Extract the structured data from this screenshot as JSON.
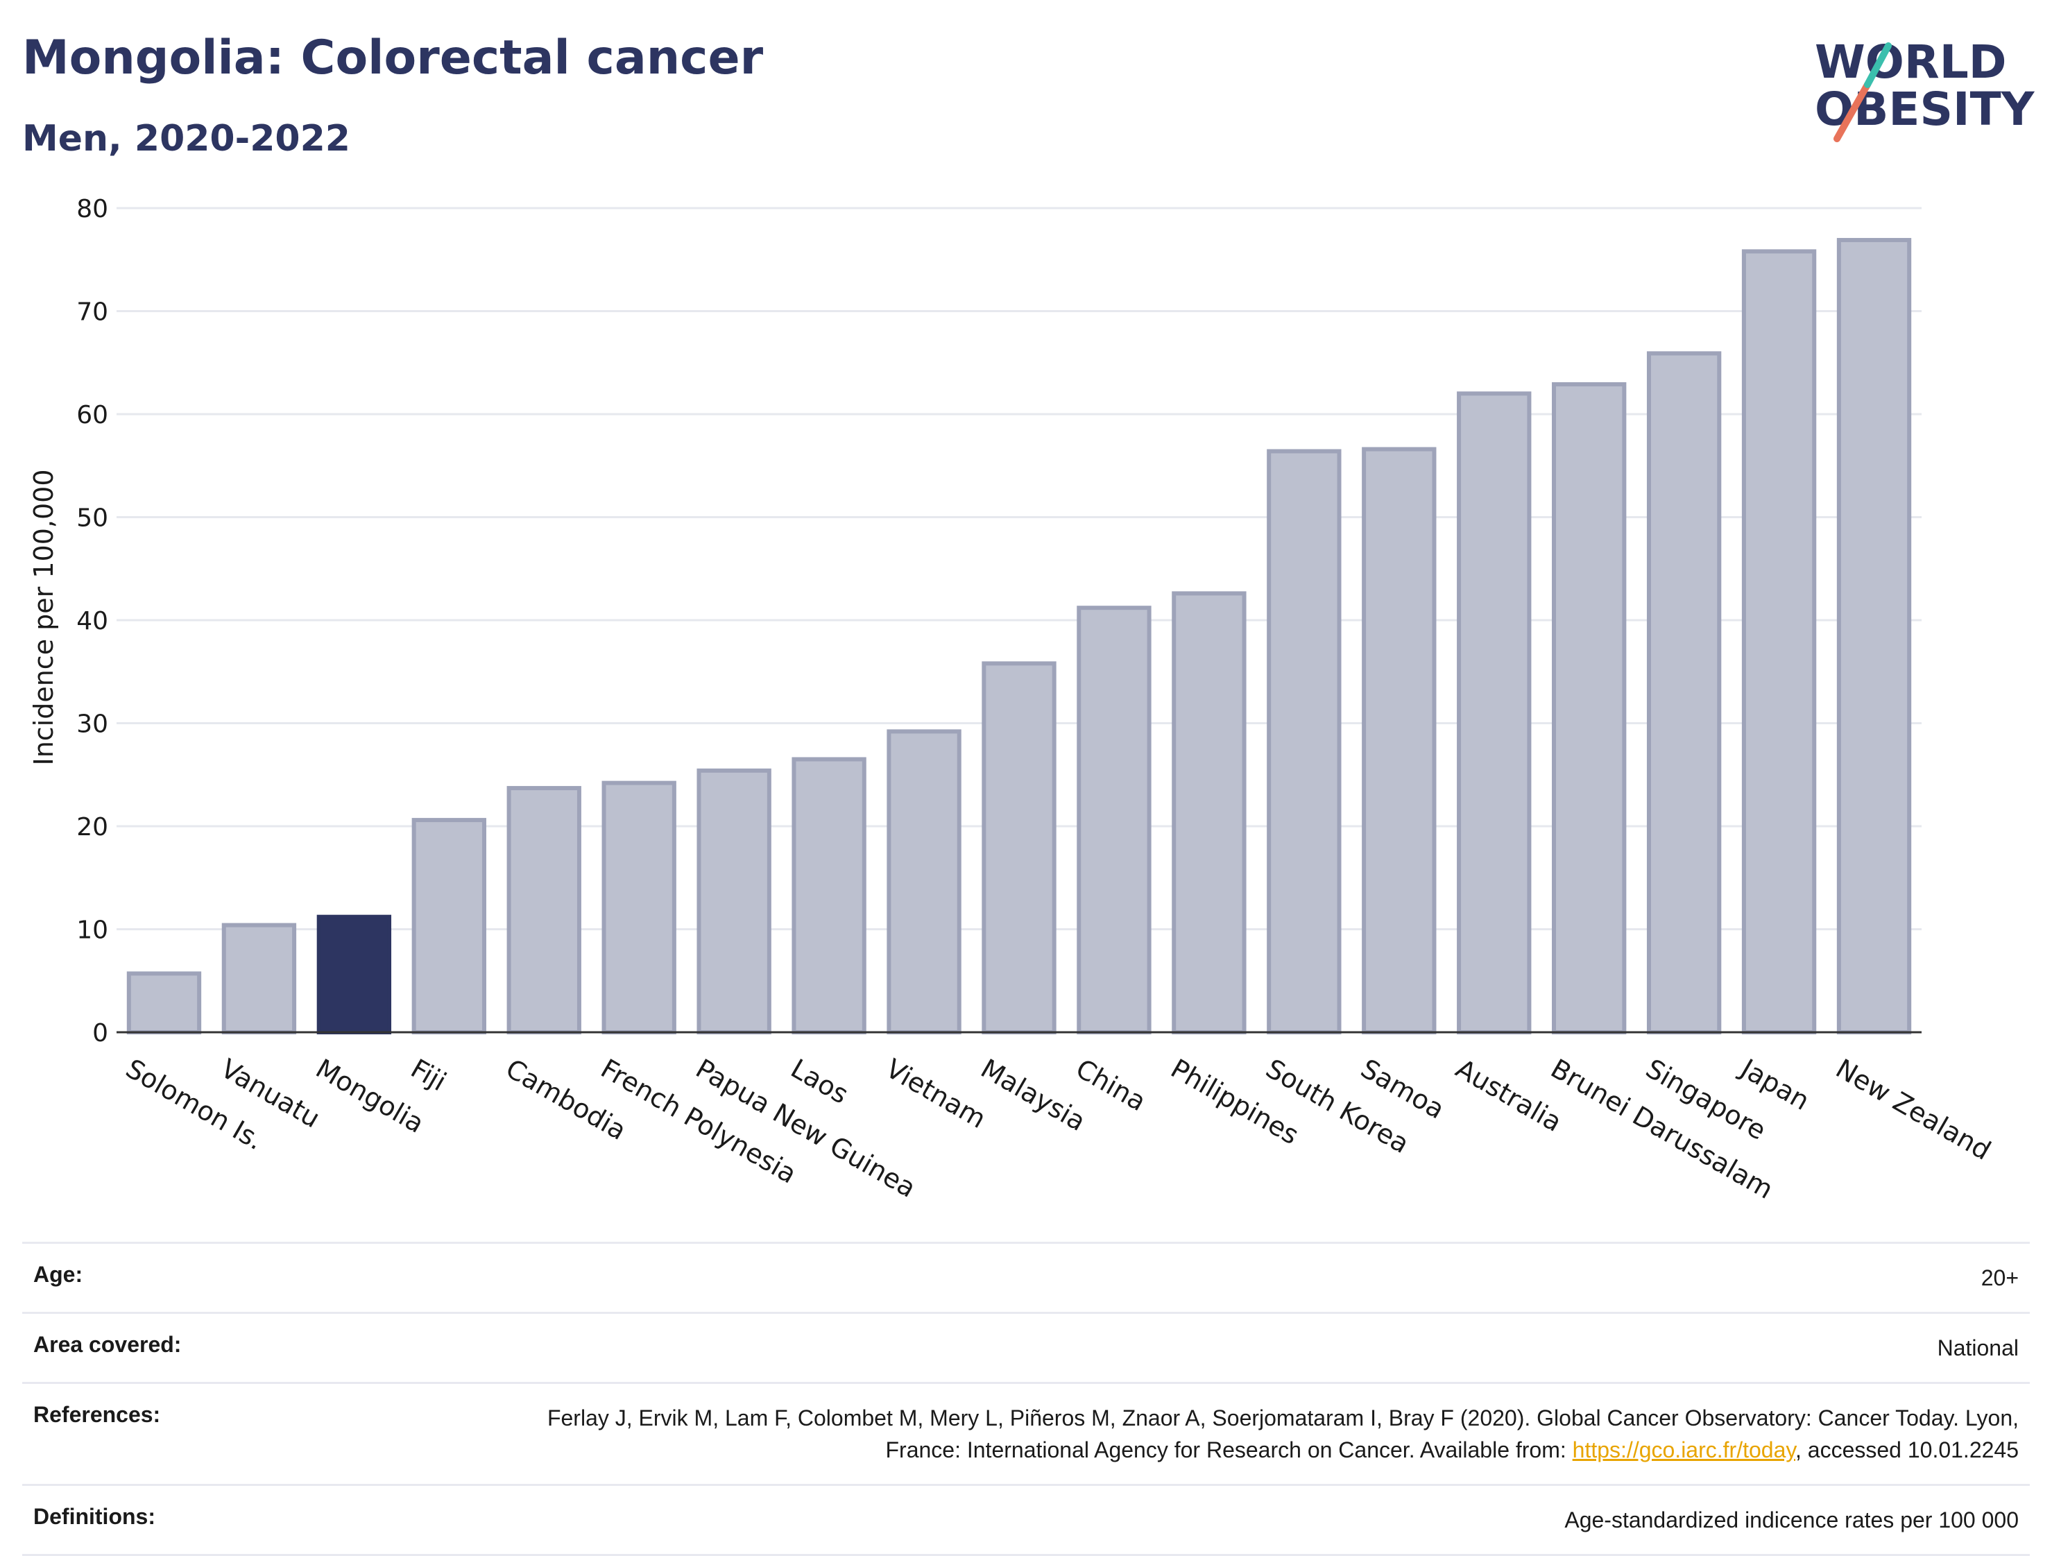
{
  "header": {
    "title": "Mongolia: Colorectal cancer",
    "subtitle": "Men, 2020-2022"
  },
  "logo": {
    "line1": "WORLD",
    "line2": "OBESITY",
    "slash_colors": [
      "#e8735a",
      "#3bbfad"
    ],
    "text_color": "#2d3561"
  },
  "chart_data": {
    "type": "bar",
    "title": "Mongolia: Colorectal cancer",
    "subtitle": "Men, 2020-2022",
    "xlabel": "",
    "ylabel": "Incidence per 100,000",
    "ylim": [
      0,
      80
    ],
    "yticks": [
      0,
      10,
      20,
      30,
      40,
      50,
      60,
      70,
      80
    ],
    "grid": true,
    "highlight": "Mongolia",
    "colors": {
      "default": "#bcc0cf",
      "default_stroke": "#9ea3b9",
      "highlight": "#2d3561"
    },
    "categories": [
      "Solomon Is.",
      "Vanuatu",
      "Mongolia",
      "Fiji",
      "Cambodia",
      "French Polynesia",
      "Papua New Guinea",
      "Laos",
      "Vietnam",
      "Malaysia",
      "China",
      "Philippines",
      "South Korea",
      "Samoa",
      "Australia",
      "Brunei Darussalam",
      "Singapore",
      "Japan",
      "New Zealand"
    ],
    "values": [
      5.7,
      10.4,
      11.2,
      20.6,
      23.7,
      24.2,
      25.4,
      26.5,
      29.2,
      35.8,
      41.2,
      42.6,
      56.4,
      56.6,
      62.0,
      62.9,
      65.9,
      75.8,
      76.9
    ]
  },
  "meta": {
    "age_label": "Age:",
    "age_value": "20+",
    "area_label": "Area covered:",
    "area_value": "National",
    "references_label": "References:",
    "references_text": "Ferlay J, Ervik M, Lam F, Colombet M, Mery L, Piñeros M, Znaor A, Soerjomataram I, Bray F (2020). Global Cancer Observatory: Cancer Today. Lyon, France: International Agency for Research on Cancer. Available from: ",
    "references_link": "https://gco.iarc.fr/today",
    "references_suffix": ", accessed 10.01.2245",
    "definitions_label": "Definitions:",
    "definitions_value": "Age-standardized indicence rates per 100 000"
  }
}
